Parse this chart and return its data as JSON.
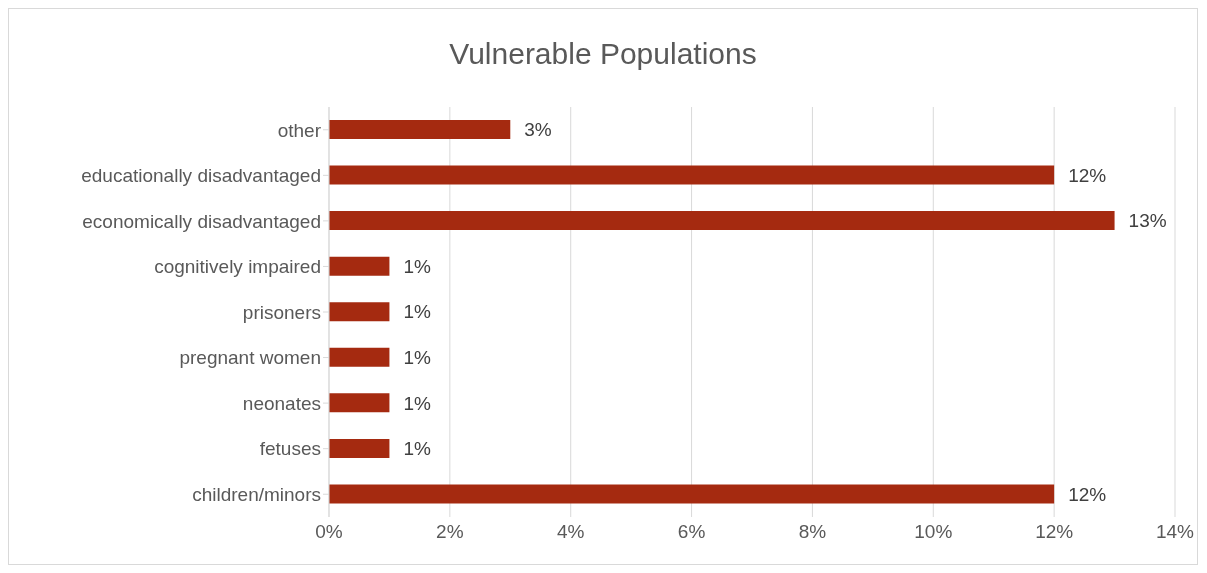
{
  "chart_data": {
    "type": "bar",
    "orientation": "horizontal",
    "title": "Vulnerable Populations",
    "categories": [
      "other",
      "educationally disadvantaged",
      "economically disadvantaged",
      "cognitively impaired",
      "prisoners",
      "pregnant women",
      "neonates",
      "fetuses",
      "children/minors"
    ],
    "values": [
      3,
      12,
      13,
      1,
      1,
      1,
      1,
      1,
      12
    ],
    "value_labels": [
      "3%",
      "12%",
      "13%",
      "1%",
      "1%",
      "1%",
      "1%",
      "1%",
      "12%"
    ],
    "color": "#a52a10",
    "xlim": [
      0,
      14
    ],
    "xticks": [
      {
        "value": 0,
        "label": "0%"
      },
      {
        "value": 2,
        "label": "2%"
      },
      {
        "value": 4,
        "label": "4%"
      },
      {
        "value": 6,
        "label": "6%"
      },
      {
        "value": 8,
        "label": "8%"
      },
      {
        "value": 10,
        "label": "10%"
      },
      {
        "value": 12,
        "label": "12%"
      },
      {
        "value": 14,
        "label": "14%"
      }
    ],
    "grid": "x",
    "legend": false
  }
}
